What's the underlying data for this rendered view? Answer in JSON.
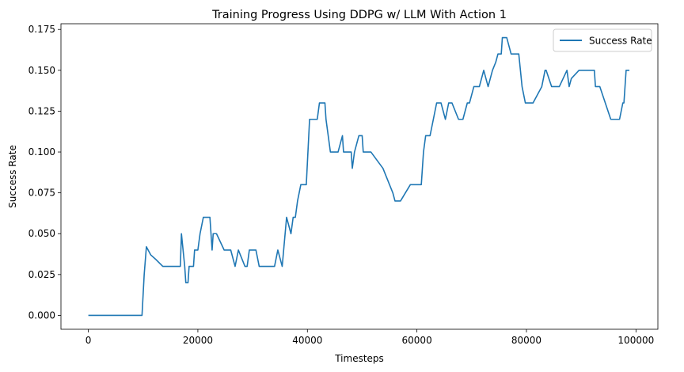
{
  "chart_data": {
    "type": "line",
    "title": "Training Progress Using DDPG w/ LLM With Action 1",
    "xlabel": "Timesteps",
    "ylabel": "Success Rate",
    "xlim": [
      -5000,
      104000
    ],
    "ylim": [
      -0.0085,
      0.1785
    ],
    "xticks": [
      0,
      20000,
      40000,
      60000,
      80000,
      100000
    ],
    "xtick_labels": [
      "0",
      "20000",
      "40000",
      "60000",
      "80000",
      "100000"
    ],
    "yticks": [
      0,
      0.025,
      0.05,
      0.075,
      0.1,
      0.125,
      0.15,
      0.175
    ],
    "ytick_labels": [
      "0.000",
      "0.025",
      "0.050",
      "0.075",
      "0.100",
      "0.125",
      "0.150",
      "0.175"
    ],
    "grid": false,
    "legend_position": "top-right",
    "series": [
      {
        "name": "Success Rate",
        "color": "#1f77b4",
        "x": [
          0,
          9800,
          10200,
          10600,
          11400,
          12400,
          13000,
          13600,
          15000,
          16800,
          17000,
          17600,
          17800,
          18200,
          18400,
          19200,
          19400,
          20000,
          20400,
          21000,
          22200,
          22600,
          22800,
          23400,
          24800,
          26000,
          26800,
          27400,
          28600,
          29000,
          29400,
          30600,
          31200,
          34000,
          34600,
          35000,
          35400,
          35800,
          36200,
          37000,
          37400,
          37800,
          38200,
          38800,
          39800,
          40400,
          41800,
          42200,
          43200,
          43400,
          44200,
          45600,
          46400,
          46600,
          47000,
          48000,
          48200,
          48600,
          49400,
          50000,
          50200,
          51600,
          53800,
          55600,
          56000,
          57000,
          58800,
          60800,
          61200,
          61600,
          62400,
          63600,
          64200,
          64400,
          65200,
          65800,
          66400,
          67600,
          68400,
          69200,
          69600,
          70400,
          71400,
          72200,
          73000,
          73800,
          74400,
          74800,
          75400,
          75600,
          76400,
          77200,
          77800,
          78600,
          79200,
          79800,
          81200,
          82800,
          83400,
          83600,
          84600,
          86000,
          87400,
          87800,
          88200,
          89600,
          90600,
          92400,
          92600,
          93400,
          94400,
          95400,
          96000,
          97000,
          97600,
          97800,
          98200,
          98400,
          98800
        ],
        "y": [
          0.0,
          0.0,
          0.025,
          0.042,
          0.037,
          0.034,
          0.032,
          0.03,
          0.03,
          0.03,
          0.05,
          0.03,
          0.02,
          0.02,
          0.03,
          0.03,
          0.04,
          0.04,
          0.05,
          0.06,
          0.06,
          0.04,
          0.05,
          0.05,
          0.04,
          0.04,
          0.03,
          0.04,
          0.03,
          0.03,
          0.04,
          0.04,
          0.03,
          0.03,
          0.04,
          0.035,
          0.03,
          0.045,
          0.06,
          0.05,
          0.06,
          0.06,
          0.07,
          0.08,
          0.08,
          0.12,
          0.12,
          0.13,
          0.13,
          0.12,
          0.1,
          0.1,
          0.11,
          0.1,
          0.1,
          0.1,
          0.09,
          0.1,
          0.11,
          0.11,
          0.1,
          0.1,
          0.09,
          0.075,
          0.07,
          0.07,
          0.08,
          0.08,
          0.1,
          0.11,
          0.11,
          0.13,
          0.13,
          0.13,
          0.12,
          0.13,
          0.13,
          0.12,
          0.12,
          0.13,
          0.13,
          0.14,
          0.14,
          0.15,
          0.14,
          0.15,
          0.155,
          0.16,
          0.16,
          0.17,
          0.17,
          0.16,
          0.16,
          0.16,
          0.14,
          0.13,
          0.13,
          0.14,
          0.15,
          0.15,
          0.14,
          0.14,
          0.15,
          0.14,
          0.145,
          0.15,
          0.15,
          0.15,
          0.14,
          0.14,
          0.13,
          0.12,
          0.12,
          0.12,
          0.13,
          0.13,
          0.15,
          0.15,
          0.15
        ]
      }
    ]
  }
}
